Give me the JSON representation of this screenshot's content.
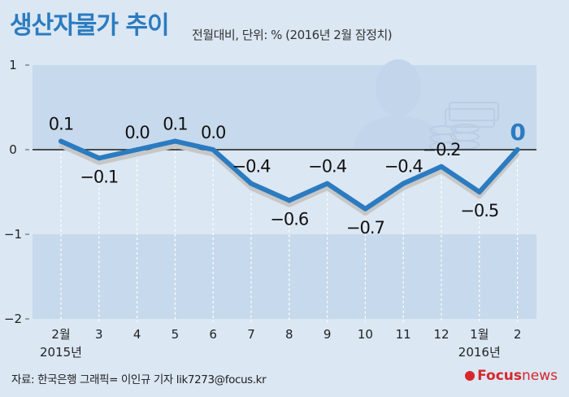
{
  "title": "생산자물가 추이",
  "subtitle": "전월대비, 단위: % (2016년 2월 잠정치)",
  "source": "자료: 한국은행   그래픽= 이인규 기자 lik7273@focus.kr",
  "logo": {
    "word1": "Focus",
    "word2": "news"
  },
  "colors": {
    "line": "#2b7bc0",
    "title": "#2b7bc0",
    "band": "#c7d9ec",
    "logo": "#d8262c"
  },
  "chart_data": {
    "type": "line",
    "categories": [
      "2월",
      "3",
      "4",
      "5",
      "6",
      "7",
      "8",
      "9",
      "10",
      "11",
      "12",
      "1월",
      "2"
    ],
    "year_labels": [
      "2015년",
      "2016년"
    ],
    "values": [
      0.1,
      -0.1,
      0.0,
      0.1,
      0.0,
      -0.4,
      -0.6,
      -0.4,
      -0.7,
      -0.4,
      -0.2,
      -0.5,
      0
    ],
    "value_labels": [
      "0.1",
      "−0.1",
      "0.0",
      "0.1",
      "0.0",
      "−0.4",
      "−0.6",
      "−0.4",
      "−0.7",
      "−0.4",
      "−0.2",
      "−0.5",
      "0"
    ],
    "y_ticks": [
      "1",
      "0",
      "−1",
      "−2"
    ],
    "ylim": [
      -2,
      1
    ],
    "grid": false
  }
}
